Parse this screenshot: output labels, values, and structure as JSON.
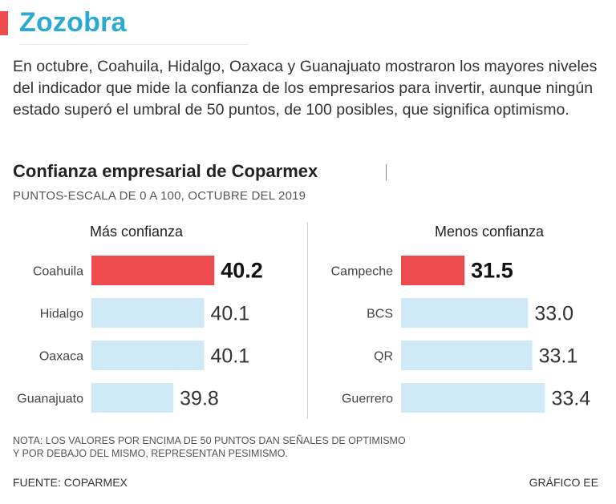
{
  "title": "Zozobra",
  "intro": "En octubre, Coahuila, Hidalgo, Oaxaca y Guanajuato mostraron los mayores niveles del indicador que mide la confianza de los empresarios para invertir, aunque ningún estado superó el umbral de 50 puntos, de 100 posibles, que significa optimismo.",
  "note_line1": "NOTA: LOS VALORES POR ENCIMA DE 50 PUNTOS DAN SEÑALES DE OPTIMISMO",
  "note_line2": "Y POR DEBAJO DEL MISMO, REPRESENTAN PESIMISMO.",
  "source": "FUENTE: COPARMEX",
  "credit": "GRÁFICO EE",
  "colors": {
    "accent": "#ec4a4c",
    "title": "#29a9d3",
    "bar_light": "#cfe9f7",
    "bar_highlight": "#ec4a4c"
  },
  "chart_data": [
    {
      "type": "bar",
      "title": "Confianza empresarial de Coparmex",
      "subtitle": "PUNTOS-ESCALA DE 0 A 100, OCTUBRE DEL 2019",
      "panel_title": "Más confianza",
      "orientation": "horizontal",
      "categories": [
        "Coahuila",
        "Hidalgo",
        "Oaxaca",
        "Guanajuato"
      ],
      "values": [
        40.2,
        40.1,
        40.1,
        39.8
      ],
      "labels": [
        "40.2",
        "40.1",
        "40.1",
        "39.8"
      ],
      "highlight": [
        true,
        false,
        false,
        false
      ],
      "xlim": [
        39.0,
        40.3
      ]
    },
    {
      "type": "bar",
      "panel_title": "Menos confianza",
      "orientation": "horizontal",
      "categories": [
        "Campeche",
        "BCS",
        "QR",
        "Guerrero"
      ],
      "values": [
        31.5,
        33.0,
        33.1,
        33.4
      ],
      "labels": [
        "31.5",
        "33.0",
        "33.1",
        "33.4"
      ],
      "highlight": [
        true,
        false,
        false,
        false
      ],
      "xlim": [
        30.0,
        33.6
      ]
    }
  ]
}
